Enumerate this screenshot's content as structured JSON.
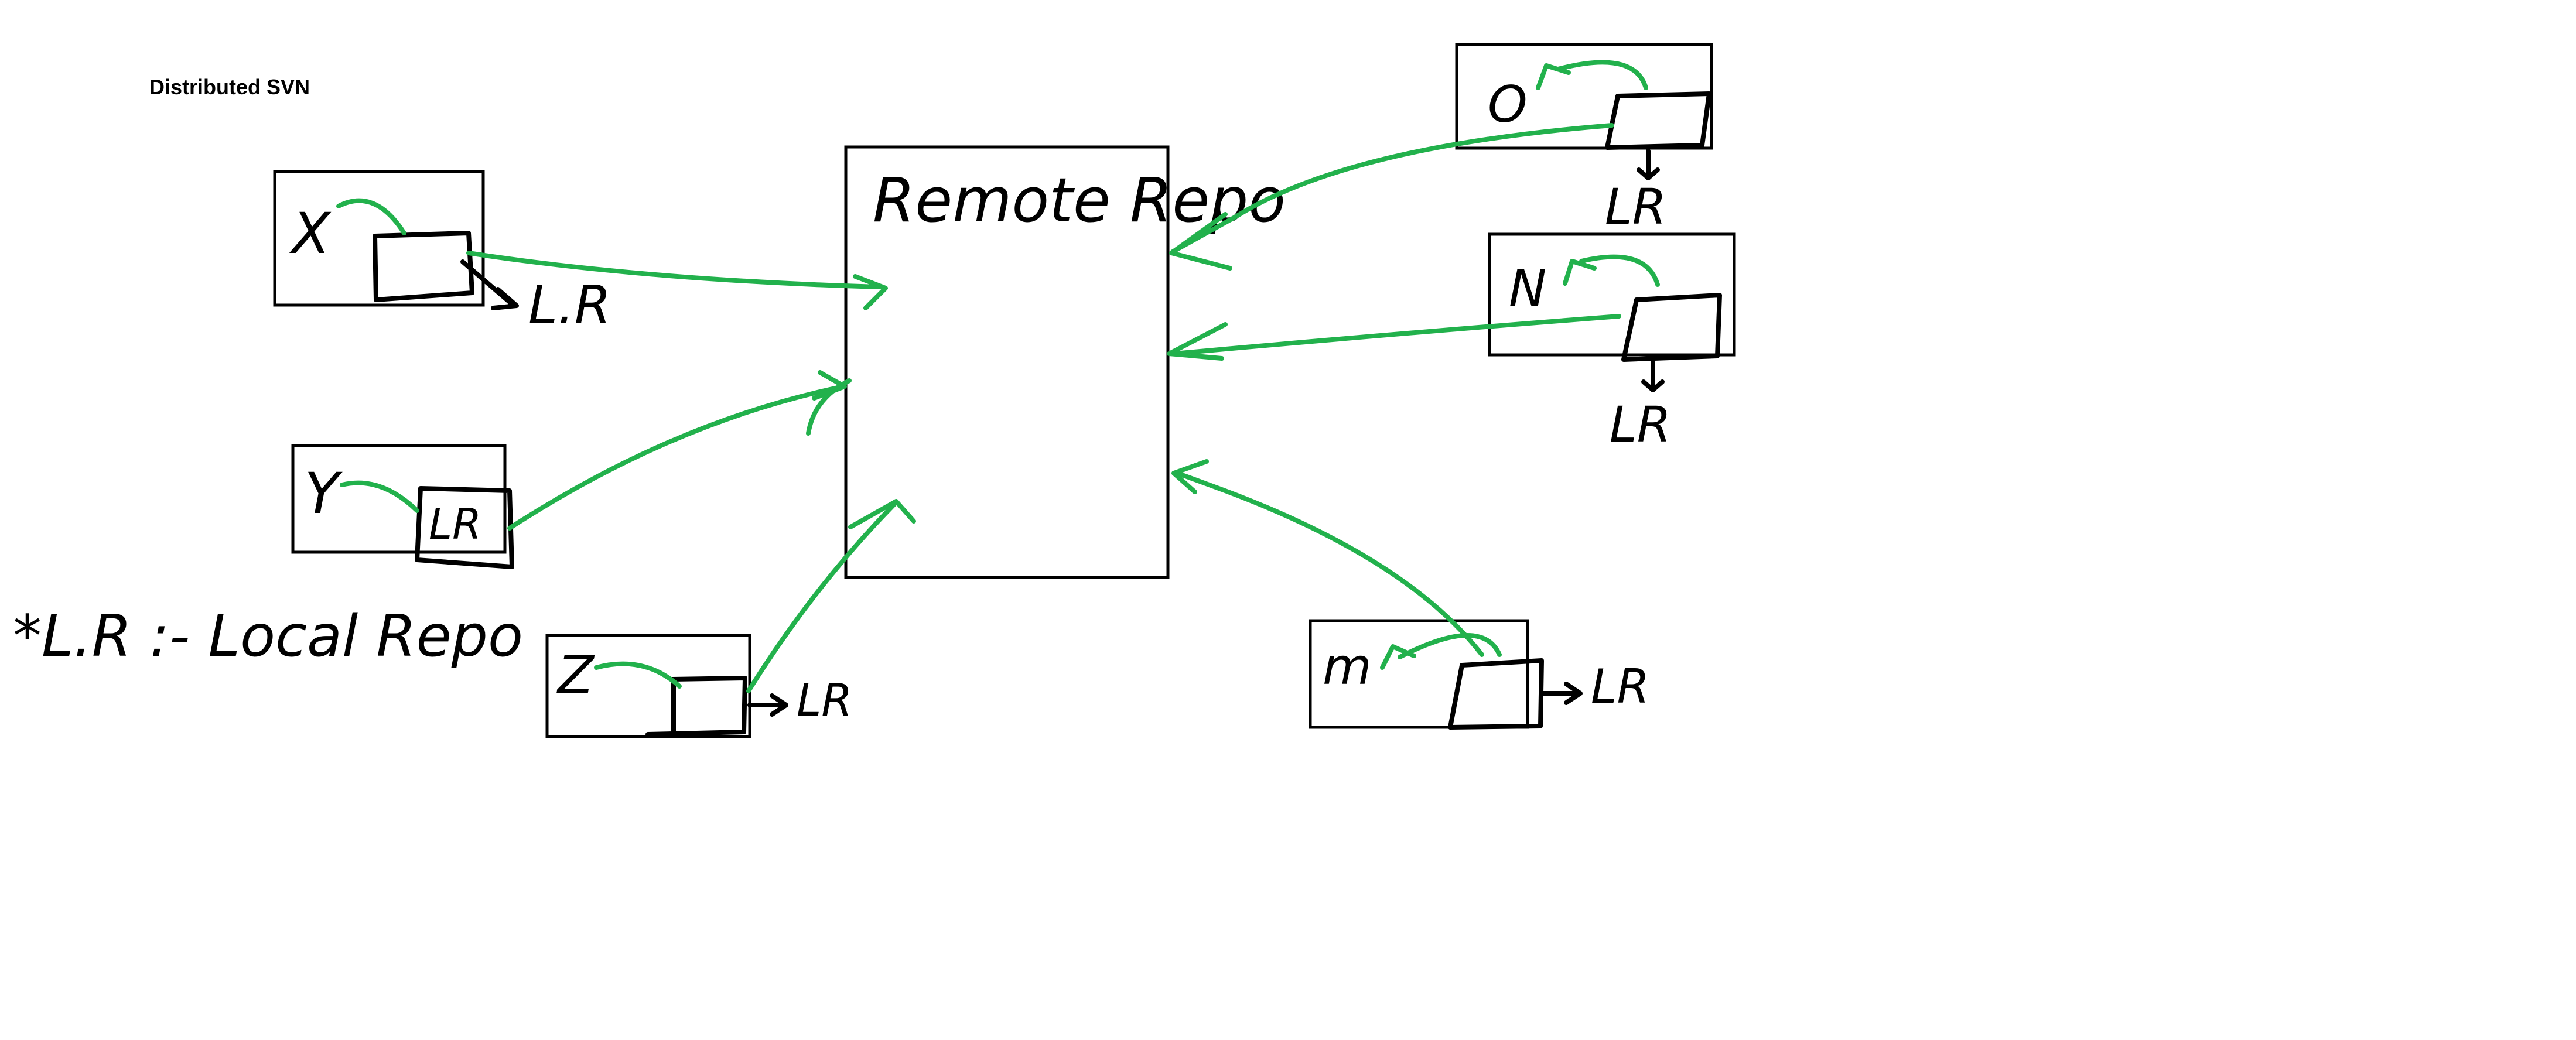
{
  "title": "Distributed SVN",
  "central": {
    "label": "Remote Repo"
  },
  "legend": "*L.R :- Local Repo",
  "nodes": [
    {
      "id": "x",
      "label": "X",
      "repo_label": "L.R"
    },
    {
      "id": "y",
      "label": "Y",
      "repo_label": "LR"
    },
    {
      "id": "z",
      "label": "Z",
      "repo_label": "LR"
    },
    {
      "id": "o",
      "label": "O",
      "repo_label": "LR"
    },
    {
      "id": "n",
      "label": "N",
      "repo_label": "LR"
    },
    {
      "id": "m",
      "label": "m",
      "repo_label": "LR"
    }
  ],
  "colors": {
    "arrow": "#22b14c",
    "ink": "#000000"
  }
}
